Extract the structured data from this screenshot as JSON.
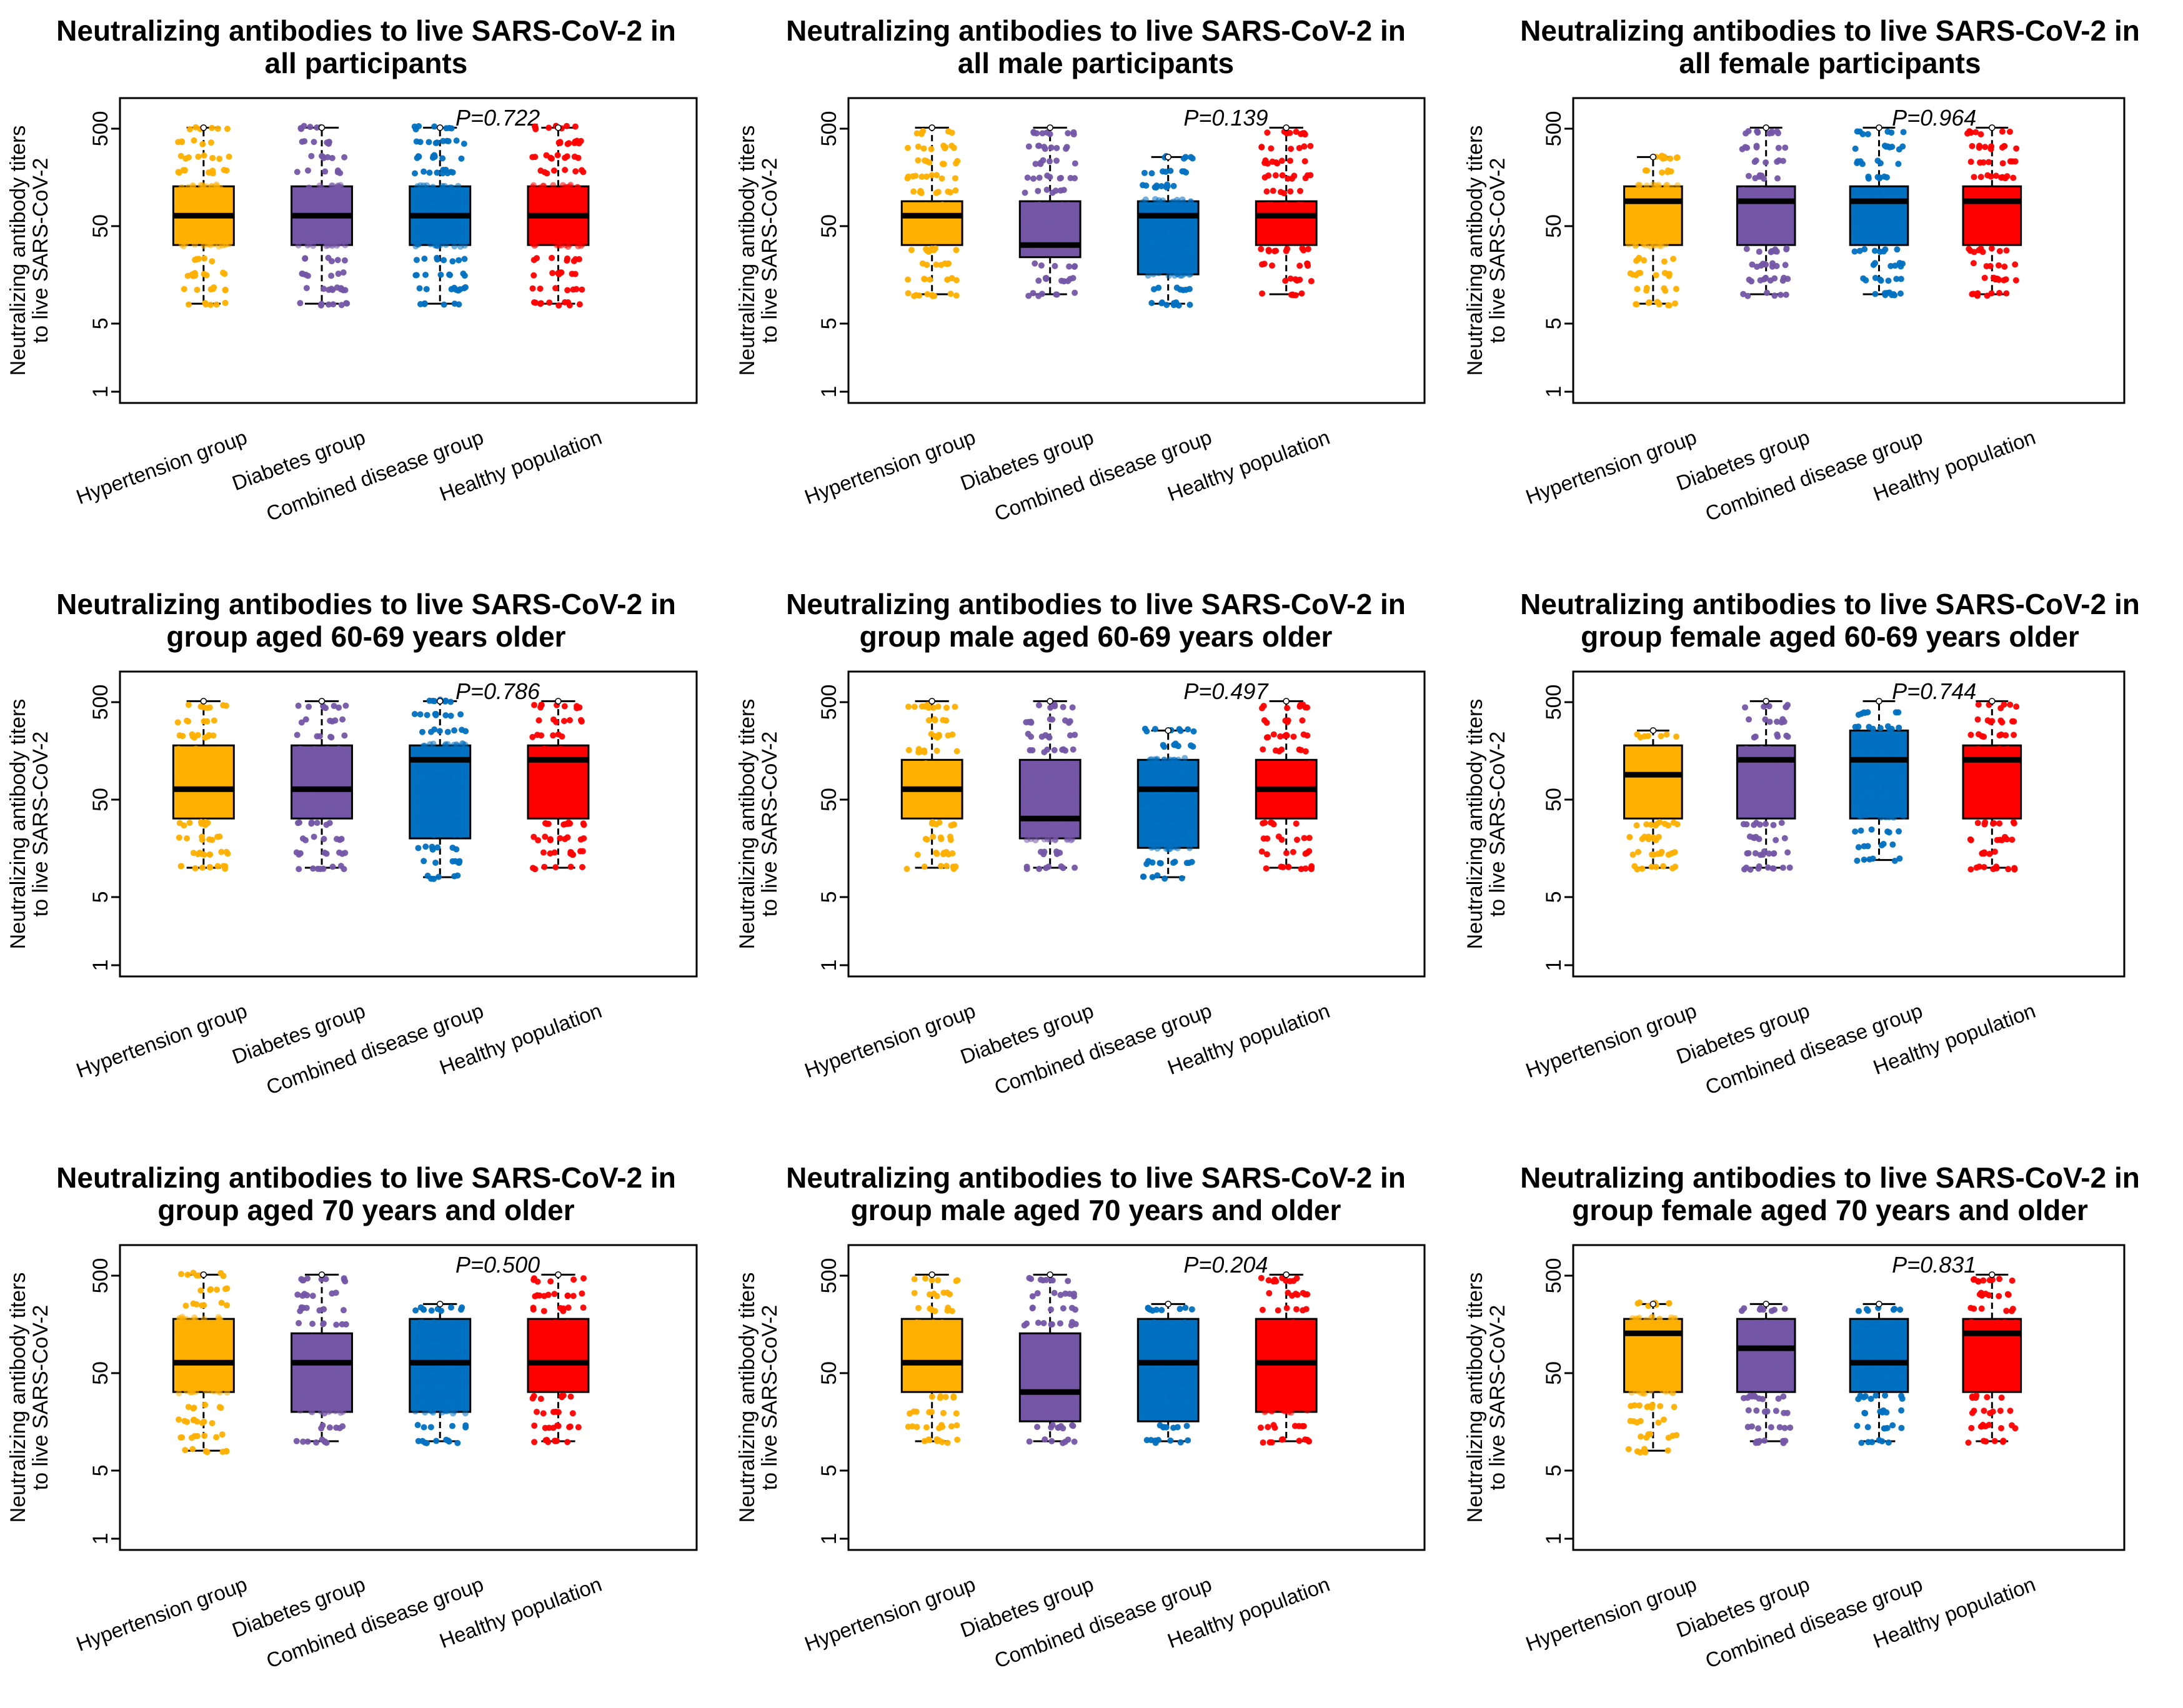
{
  "chart_data": {
    "type": "boxplot",
    "categories": [
      "Hypertension group",
      "Diabetes group",
      "Combined disease group",
      "Healthy population"
    ],
    "colors": [
      "#FFB000",
      "#7456A6",
      "#0070C0",
      "#FF0000"
    ],
    "y_scale": "log",
    "ylim": [
      1,
      1000
    ],
    "yticks": [
      1,
      5,
      50,
      500
    ],
    "ylabel_line1": "Neutralizing antibody titers",
    "ylabel_line2": "to live SARS-CoV-2",
    "panels": [
      {
        "title_line1": "Neutralizing antibodies to live SARS-CoV-2 in",
        "title_line2": "all participants",
        "p_value": "P=0.722",
        "boxes": [
          [
            8,
            32,
            64,
            128,
            512
          ],
          [
            8,
            32,
            64,
            128,
            512
          ],
          [
            8,
            32,
            64,
            128,
            512
          ],
          [
            8,
            32,
            64,
            128,
            512
          ]
        ]
      },
      {
        "title_line1": "Neutralizing antibodies to live SARS-CoV-2 in",
        "title_line2": "all male participants",
        "p_value": "P=0.139",
        "boxes": [
          [
            10,
            32,
            64,
            90,
            512
          ],
          [
            10,
            24,
            32,
            90,
            512
          ],
          [
            8,
            16,
            64,
            90,
            256
          ],
          [
            10,
            32,
            64,
            90,
            512
          ]
        ]
      },
      {
        "title_line1": "Neutralizing antibodies to live SARS-CoV-2 in",
        "title_line2": "all female participants",
        "p_value": "P=0.964",
        "boxes": [
          [
            8,
            32,
            90,
            128,
            256
          ],
          [
            10,
            32,
            90,
            128,
            512
          ],
          [
            10,
            32,
            90,
            128,
            512
          ],
          [
            10,
            32,
            90,
            128,
            512
          ]
        ]
      },
      {
        "title_line1": "Neutralizing antibodies to live SARS-CoV-2 in",
        "title_line2": "group aged 60-69 years older",
        "p_value": "P=0.786",
        "boxes": [
          [
            10,
            32,
            64,
            180,
            512
          ],
          [
            10,
            32,
            64,
            180,
            512
          ],
          [
            8,
            20,
            128,
            180,
            512
          ],
          [
            10,
            32,
            128,
            180,
            512
          ]
        ]
      },
      {
        "title_line1": "Neutralizing antibodies to live SARS-CoV-2 in",
        "title_line2": "group male aged 60-69 years older",
        "p_value": "P=0.497",
        "boxes": [
          [
            10,
            32,
            64,
            128,
            512
          ],
          [
            10,
            20,
            32,
            128,
            512
          ],
          [
            8,
            16,
            64,
            128,
            256
          ],
          [
            10,
            32,
            64,
            128,
            512
          ]
        ]
      },
      {
        "title_line1": "Neutralizing antibodies to live SARS-CoV-2 in",
        "title_line2": "group female aged 60-69 years older",
        "p_value": "P=0.744",
        "boxes": [
          [
            10,
            32,
            90,
            180,
            256
          ],
          [
            10,
            32,
            128,
            180,
            512
          ],
          [
            12,
            32,
            128,
            256,
            512
          ],
          [
            10,
            32,
            128,
            180,
            512
          ]
        ]
      },
      {
        "title_line1": "Neutralizing antibodies to live SARS-CoV-2 in",
        "title_line2": "group aged 70 years and older",
        "p_value": "P=0.500",
        "boxes": [
          [
            8,
            32,
            64,
            180,
            512
          ],
          [
            10,
            20,
            64,
            128,
            512
          ],
          [
            10,
            20,
            64,
            180,
            256
          ],
          [
            10,
            32,
            64,
            180,
            512
          ]
        ]
      },
      {
        "title_line1": "Neutralizing antibodies to live SARS-CoV-2 in",
        "title_line2": "group male aged 70 years and older",
        "p_value": "P=0.204",
        "boxes": [
          [
            10,
            32,
            64,
            180,
            512
          ],
          [
            10,
            16,
            32,
            128,
            512
          ],
          [
            10,
            16,
            64,
            180,
            256
          ],
          [
            10,
            20,
            64,
            180,
            512
          ]
        ]
      },
      {
        "title_line1": "Neutralizing antibodies to live SARS-CoV-2 in",
        "title_line2": "group female aged 70 years and older",
        "p_value": "P=0.831",
        "boxes": [
          [
            8,
            32,
            128,
            180,
            256
          ],
          [
            10,
            32,
            90,
            180,
            256
          ],
          [
            10,
            32,
            64,
            180,
            256
          ],
          [
            10,
            32,
            128,
            180,
            512
          ]
        ]
      }
    ]
  }
}
